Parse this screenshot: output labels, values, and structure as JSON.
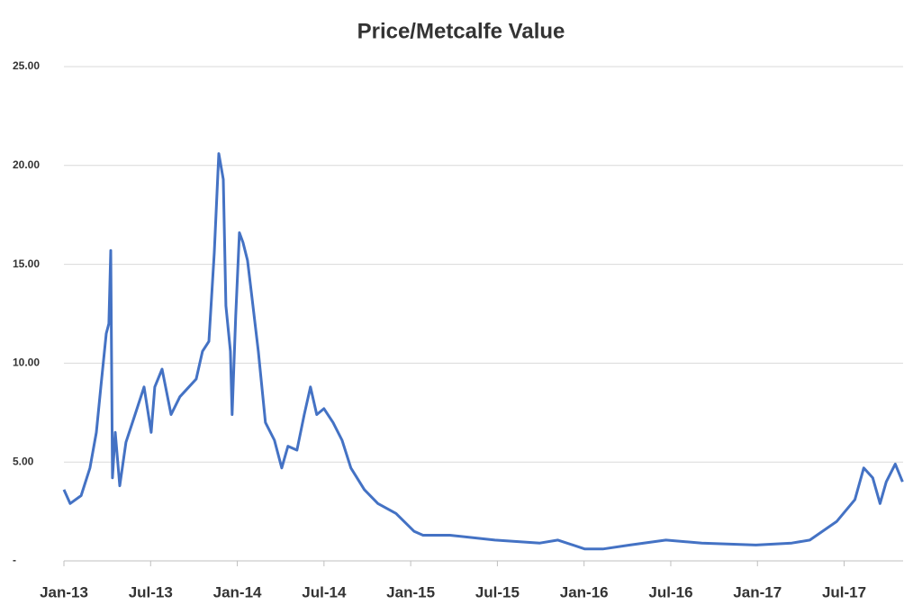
{
  "chart_data": {
    "type": "line",
    "title": "Price/Metcalfe Value",
    "x": [
      2013.0,
      2013.036,
      2013.099,
      2013.15,
      2013.187,
      2013.213,
      2013.244,
      2013.259,
      2013.27,
      2013.28,
      2013.296,
      2013.322,
      2013.358,
      2013.41,
      2013.462,
      2013.503,
      2013.524,
      2013.566,
      2013.618,
      2013.669,
      2013.721,
      2013.763,
      2013.799,
      2013.836,
      2013.867,
      2013.893,
      2013.919,
      2013.934,
      2013.96,
      2013.97,
      2013.991,
      2014.012,
      2014.033,
      2014.059,
      2014.085,
      2014.121,
      2014.162,
      2014.214,
      2014.256,
      2014.292,
      2014.344,
      2014.386,
      2014.422,
      2014.458,
      2014.5,
      2014.552,
      2014.604,
      2014.655,
      2014.733,
      2014.811,
      2014.915,
      2015.019,
      2015.071,
      2015.226,
      2015.486,
      2015.745,
      2015.849,
      2016.005,
      2016.108,
      2016.264,
      2016.472,
      2016.679,
      2016.991,
      2017.198,
      2017.302,
      2017.458,
      2017.562,
      2017.613,
      2017.665,
      2017.707,
      2017.743,
      2017.795,
      2017.837
    ],
    "series": [
      {
        "name": "Price/Metcalfe Value",
        "color": "#4472c4",
        "values": [
          3.6,
          2.9,
          3.3,
          4.7,
          6.5,
          8.8,
          11.5,
          12,
          15.7,
          4.2,
          6.5,
          3.8,
          6,
          7.4,
          8.8,
          6.5,
          8.8,
          9.7,
          7.4,
          8.3,
          8.8,
          9.2,
          10.6,
          11.1,
          15.6,
          20.6,
          19.3,
          12.9,
          10.6,
          7.4,
          12.4,
          16.6,
          16.1,
          15.2,
          13.3,
          10.6,
          7,
          6.1,
          4.7,
          5.8,
          5.6,
          7.4,
          8.8,
          7.4,
          7.7,
          7,
          6.1,
          4.7,
          3.6,
          2.9,
          2.4,
          1.5,
          1.3,
          1.3,
          1.05,
          0.9,
          1.05,
          0.6,
          0.6,
          0.8,
          1.05,
          0.9,
          0.8,
          0.9,
          1.05,
          2.0,
          3.1,
          4.7,
          4.2,
          2.9,
          4,
          4.9,
          4
        ]
      }
    ],
    "xlim": [
      2013,
      2017.84
    ],
    "xticks": [
      {
        "value": 2013,
        "label": "Jan-13"
      },
      {
        "value": 2013.5,
        "label": "Jul-13"
      },
      {
        "value": 2014,
        "label": "Jan-14"
      },
      {
        "value": 2014.5,
        "label": "Jul-14"
      },
      {
        "value": 2015,
        "label": "Jan-15"
      },
      {
        "value": 2015.5,
        "label": "Jul-15"
      },
      {
        "value": 2016,
        "label": "Jan-16"
      },
      {
        "value": 2016.5,
        "label": "Jul-16"
      },
      {
        "value": 2017,
        "label": "Jan-17"
      },
      {
        "value": 2017.5,
        "label": "Jul-17"
      }
    ],
    "ylim": [
      0,
      25
    ],
    "yticks": [
      {
        "value": 0,
        "label": "-"
      },
      {
        "value": 5,
        "label": "5.00"
      },
      {
        "value": 10,
        "label": "10.00"
      },
      {
        "value": 15,
        "label": "15.00"
      },
      {
        "value": 20,
        "label": "20.00"
      },
      {
        "value": 25,
        "label": "25.00"
      }
    ],
    "grid": true
  }
}
